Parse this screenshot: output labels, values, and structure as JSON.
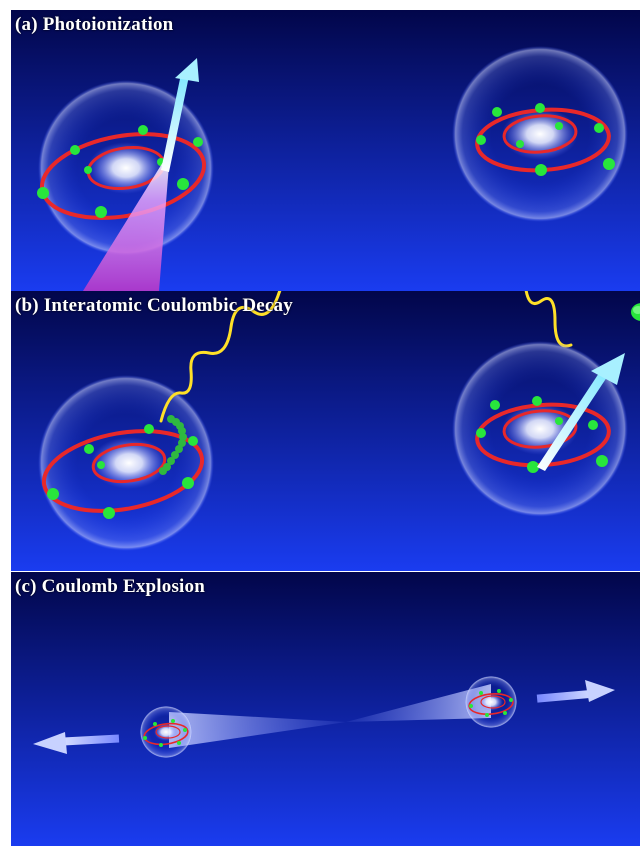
{
  "panels": [
    {
      "title": "(a) Photoionization"
    },
    {
      "title": "(b) Interatomic Coulombic Decay"
    },
    {
      "title": "(c) Coulomb Explosion"
    }
  ],
  "colors": {
    "background_dark": "#02064a",
    "background_light": "#1a3cf0",
    "orbit": "#e8282a",
    "electron": "#28e63c",
    "photon": "#ffe028",
    "arrow": "#a8f0ff",
    "beam": "#c040c8"
  },
  "icons": [
    "atom-icon",
    "electron-icon",
    "photon-wave-icon",
    "arrow-icon"
  ]
}
